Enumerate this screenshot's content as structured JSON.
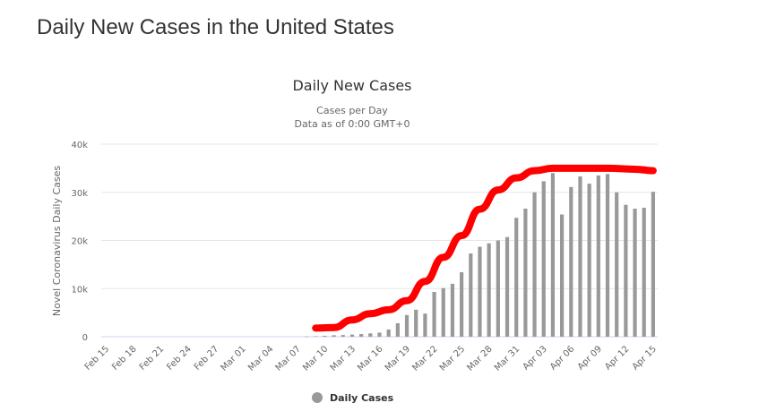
{
  "page": {
    "title": "Daily New Cases in the United States"
  },
  "chart_data": {
    "type": "bar",
    "title": "Daily New Cases",
    "subtitle_lines": [
      "Cases per Day",
      "Data as of 0:00 GMT+0"
    ],
    "xlabel": "",
    "ylabel": "Novel Coronavirus Daily Cases",
    "ylim": [
      0,
      40000
    ],
    "yticks": [
      0,
      10000,
      20000,
      30000,
      40000
    ],
    "ytick_labels": [
      "0",
      "10k",
      "20k",
      "30k",
      "40k"
    ],
    "grid": true,
    "legend_position": "bottom-center",
    "bar_color": "#999999",
    "xtick_labels": [
      "Feb 15",
      "Feb 18",
      "Feb 21",
      "Feb 24",
      "Feb 27",
      "Mar 01",
      "Mar 04",
      "Mar 07",
      "Mar 10",
      "Mar 13",
      "Mar 16",
      "Mar 19",
      "Mar 22",
      "Mar 25",
      "Mar 28",
      "Mar 31",
      "Apr 03",
      "Apr 06",
      "Apr 09",
      "Apr 12",
      "Apr 15"
    ],
    "categories": [
      "Feb 15",
      "Feb 16",
      "Feb 17",
      "Feb 18",
      "Feb 19",
      "Feb 20",
      "Feb 21",
      "Feb 22",
      "Feb 23",
      "Feb 24",
      "Feb 25",
      "Feb 26",
      "Feb 27",
      "Feb 28",
      "Feb 29",
      "Mar 01",
      "Mar 02",
      "Mar 03",
      "Mar 04",
      "Mar 05",
      "Mar 06",
      "Mar 07",
      "Mar 08",
      "Mar 09",
      "Mar 10",
      "Mar 11",
      "Mar 12",
      "Mar 13",
      "Mar 14",
      "Mar 15",
      "Mar 16",
      "Mar 17",
      "Mar 18",
      "Mar 19",
      "Mar 20",
      "Mar 21",
      "Mar 22",
      "Mar 23",
      "Mar 24",
      "Mar 25",
      "Mar 26",
      "Mar 27",
      "Mar 28",
      "Mar 29",
      "Mar 30",
      "Mar 31",
      "Apr 01",
      "Apr 02",
      "Apr 03",
      "Apr 04",
      "Apr 05",
      "Apr 06",
      "Apr 07",
      "Apr 08",
      "Apr 09",
      "Apr 10",
      "Apr 11",
      "Apr 12",
      "Apr 13",
      "Apr 14",
      "Apr 15"
    ],
    "series": [
      {
        "name": "Daily Cases",
        "color": "#999999",
        "values": [
          0,
          0,
          0,
          0,
          0,
          0,
          0,
          0,
          0,
          0,
          0,
          0,
          0,
          0,
          0,
          0,
          0,
          0,
          0,
          0,
          0,
          0,
          50,
          100,
          200,
          300,
          350,
          450,
          550,
          700,
          850,
          1500,
          2800,
          4500,
          5600,
          4800,
          9300,
          10100,
          11000,
          13400,
          17300,
          18700,
          19400,
          20000,
          20700,
          24700,
          26600,
          30000,
          32300,
          34000,
          25400,
          31100,
          33300,
          31800,
          33500,
          33800,
          30000,
          27400,
          26600,
          26800,
          30100
        ]
      }
    ],
    "annotation": {
      "name": "Hand-drawn trend overlay",
      "color": "#ff0000",
      "points": [
        [
          "Mar 09",
          1800
        ],
        [
          "Mar 11",
          1900
        ],
        [
          "Mar 13",
          3500
        ],
        [
          "Mar 15",
          4800
        ],
        [
          "Mar 17",
          5600
        ],
        [
          "Mar 19",
          7500
        ],
        [
          "Mar 21",
          11500
        ],
        [
          "Mar 23",
          16500
        ],
        [
          "Mar 25",
          21000
        ],
        [
          "Mar 27",
          26500
        ],
        [
          "Mar 29",
          30500
        ],
        [
          "Mar 31",
          33000
        ],
        [
          "Apr 02",
          34500
        ],
        [
          "Apr 04",
          35000
        ],
        [
          "Apr 07",
          35000
        ],
        [
          "Apr 10",
          35000
        ],
        [
          "Apr 13",
          34800
        ],
        [
          "Apr 15",
          34500
        ]
      ]
    }
  }
}
